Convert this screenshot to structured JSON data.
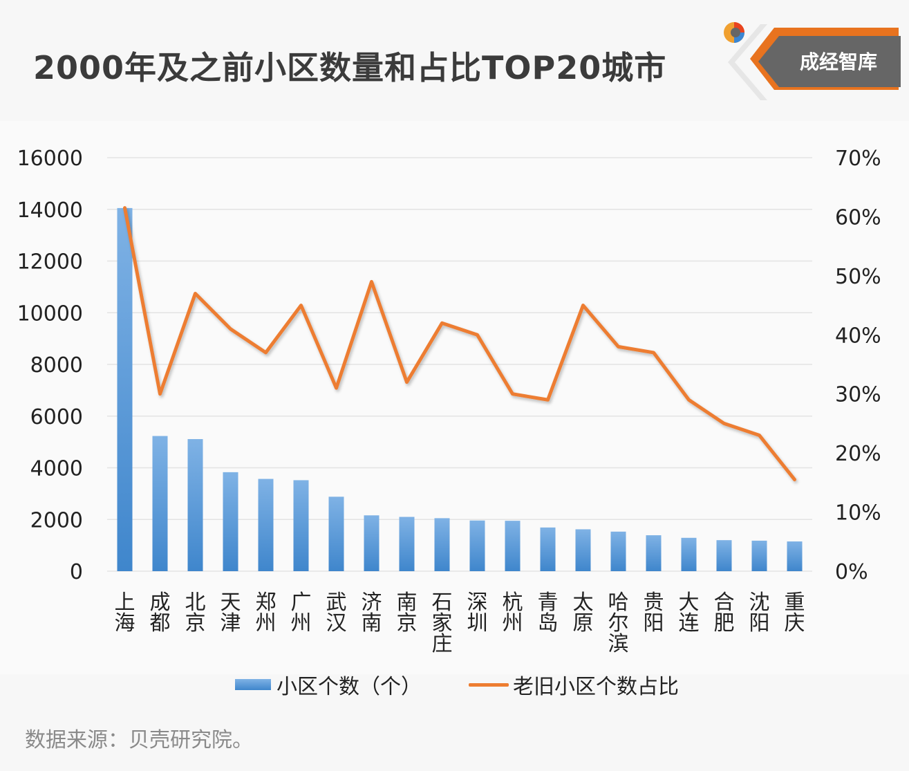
{
  "header": {
    "title": "2000年及之前小区数量和占比TOP20城市",
    "logo_text": "成经智库"
  },
  "colors": {
    "bar_top": "#7fb2e5",
    "bar_bottom": "#3f86cc",
    "line": "#ed7d31",
    "grid": "#e3e3e3",
    "logo_bg": "#666666",
    "logo_accent": "#e8731f"
  },
  "chart_data": {
    "type": "bar",
    "categories": [
      "上海",
      "成都",
      "北京",
      "天津",
      "郑州",
      "广州",
      "武汉",
      "济南",
      "南京",
      "石家庄",
      "深圳",
      "杭州",
      "青岛",
      "太原",
      "哈尔滨",
      "贵阳",
      "大连",
      "合肥",
      "沈阳",
      "重庆"
    ],
    "series": [
      {
        "name": "小区个数（个）",
        "type": "bar",
        "axis": "left",
        "values": [
          14050,
          5230,
          5110,
          3830,
          3570,
          3520,
          2880,
          2160,
          2100,
          2050,
          1960,
          1950,
          1690,
          1620,
          1530,
          1390,
          1290,
          1200,
          1180,
          1150
        ]
      },
      {
        "name": "老旧小区个数占比",
        "type": "line",
        "axis": "right",
        "values": [
          61.5,
          30,
          47,
          41,
          37,
          45,
          31,
          49,
          32,
          42,
          40,
          30,
          29,
          45,
          38,
          37,
          29,
          25,
          23,
          15.5
        ]
      }
    ],
    "y_left": {
      "min": 0,
      "max": 16000,
      "ticks": [
        "0",
        "2000",
        "4000",
        "6000",
        "8000",
        "10000",
        "12000",
        "14000",
        "16000"
      ]
    },
    "y_right": {
      "min": 0,
      "max": 70,
      "ticks": [
        "0%",
        "10%",
        "20%",
        "30%",
        "40%",
        "50%",
        "60%",
        "70%"
      ]
    },
    "grid": true,
    "legend_position": "bottom"
  },
  "legend": {
    "bar_label": "小区个数（个）",
    "line_label": "老旧小区个数占比"
  },
  "footer": {
    "source": "数据来源：贝壳研究院。"
  }
}
